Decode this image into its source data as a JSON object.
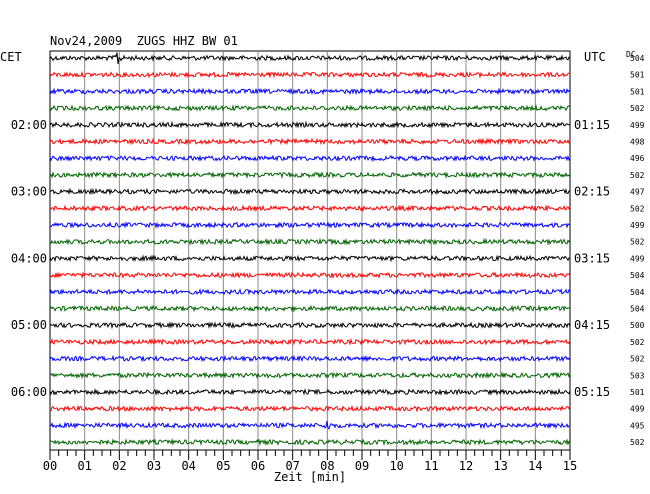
{
  "chart_data": {
    "type": "line",
    "title": "Nov24,2009  ZUGS HHZ BW 01",
    "left_timezone": "CET",
    "right_timezone": "UTC",
    "dc_label": "DC",
    "xlabel": "Zeit [min]",
    "xlim": [
      0,
      15
    ],
    "x_tick_labels": [
      "00",
      "01",
      "02",
      "03",
      "04",
      "05",
      "06",
      "07",
      "08",
      "09",
      "10",
      "11",
      "12",
      "13",
      "14",
      "15"
    ],
    "trace_minutes": 15,
    "trace_count": 24,
    "trace_colors": [
      "#000000",
      "#ff0000",
      "#0000ff",
      "#006400"
    ],
    "left_time_labels": [
      {
        "trace": 4,
        "label": "02:00"
      },
      {
        "trace": 8,
        "label": "03:00"
      },
      {
        "trace": 12,
        "label": "04:00"
      },
      {
        "trace": 16,
        "label": "05:00"
      },
      {
        "trace": 20,
        "label": "06:00"
      }
    ],
    "right_time_labels": [
      {
        "trace": 4,
        "label": "01:15"
      },
      {
        "trace": 8,
        "label": "02:15"
      },
      {
        "trace": 12,
        "label": "03:15"
      },
      {
        "trace": 16,
        "label": "04:15"
      },
      {
        "trace": 20,
        "label": "05:15"
      }
    ],
    "dc_values": [
      504,
      501,
      501,
      502,
      499,
      498,
      496,
      502,
      497,
      502,
      499,
      502,
      499,
      504,
      504,
      504,
      500,
      502,
      502,
      503,
      501,
      499,
      495,
      502
    ],
    "events": [
      {
        "trace": 0,
        "minute": 1.95,
        "amplitude": "large"
      },
      {
        "trace": 22,
        "minute": 8.0,
        "amplitude": "medium"
      }
    ],
    "grid": true
  }
}
